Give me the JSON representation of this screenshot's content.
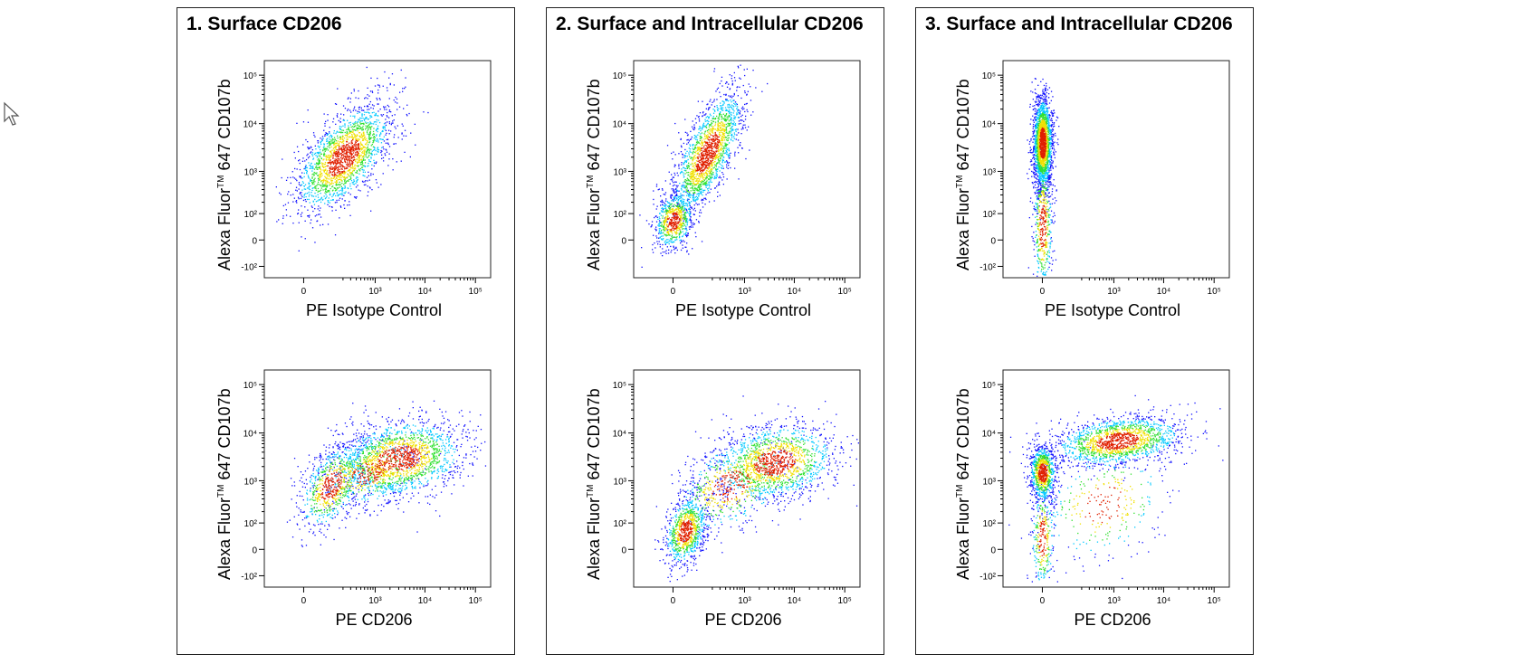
{
  "colors": {
    "density_low": "#1010ff",
    "density_mid": "#00c8ff",
    "density_midhigh": "#30e030",
    "density_high": "#f0e000",
    "density_max": "#e02000",
    "frame": "#222222"
  },
  "cursor_icon": "arrow-cursor-icon",
  "chart_data": [
    {
      "title": "1. Surface CD206",
      "plots": [
        {
          "type": "scatter",
          "xlabel": "PE Isotype Control",
          "ylabel_prefix": "Alexa Fluor",
          "ylabel_tm": "TM",
          "ylabel_suffix": " 647 CD107b",
          "x_ticks": [
            "0",
            "10³",
            "10⁴",
            "10⁵"
          ],
          "y_ticks": [
            "-10²",
            "0",
            "10²",
            "10³",
            "10⁴",
            "10⁵"
          ],
          "xlim": [
            -200,
            200000
          ],
          "ylim": [
            -200,
            200000
          ],
          "populations": [
            {
              "cx": 200,
              "cy": 2000,
              "sx": 0.3,
              "sy": 0.35,
              "rho": 0.6,
              "n": 2000
            }
          ]
        },
        {
          "type": "scatter",
          "xlabel": "PE CD206",
          "ylabel_prefix": "Alexa Fluor",
          "ylabel_tm": "TM",
          "ylabel_suffix": " 647 CD107b",
          "x_ticks": [
            "0",
            "10³",
            "10⁴",
            "10⁵"
          ],
          "y_ticks": [
            "-10²",
            "0",
            "10²",
            "10³",
            "10⁴",
            "10⁵"
          ],
          "xlim": [
            -200,
            200000
          ],
          "ylim": [
            -200,
            200000
          ],
          "populations": [
            {
              "cx": 100,
              "cy": 800,
              "sx": 0.2,
              "sy": 0.28,
              "rho": 0.5,
              "n": 700
            },
            {
              "cx": 3000,
              "cy": 3000,
              "sx": 0.4,
              "sy": 0.25,
              "rho": 0.2,
              "n": 1700
            },
            {
              "cx": 700,
              "cy": 1500,
              "sx": 0.3,
              "sy": 0.22,
              "rho": 0.3,
              "n": 500
            }
          ]
        }
      ]
    },
    {
      "title": "2. Surface and Intracellular CD206",
      "plots": [
        {
          "type": "scatter",
          "xlabel": "PE Isotype Control",
          "ylabel_prefix": "Alexa Fluor",
          "ylabel_tm": "TM",
          "ylabel_suffix": " 647 CD107b",
          "x_ticks": [
            "0",
            "10³",
            "10⁴",
            "10⁵"
          ],
          "y_ticks": [
            "0",
            "10²",
            "10³",
            "10⁴",
            "10⁵"
          ],
          "xlim": [
            -200,
            200000
          ],
          "ylim": [
            -200,
            200000
          ],
          "populations": [
            {
              "cx": 0,
              "cy": 60,
              "sx": 0.12,
              "sy": 0.18,
              "rho": 0.2,
              "n": 700
            },
            {
              "cx": 150,
              "cy": 2500,
              "sx": 0.22,
              "sy": 0.4,
              "rho": 0.7,
              "n": 1800
            }
          ]
        },
        {
          "type": "scatter",
          "xlabel": "PE CD206",
          "ylabel_prefix": "Alexa Fluor",
          "ylabel_tm": "TM",
          "ylabel_suffix": " 647 CD107b",
          "x_ticks": [
            "0",
            "10³",
            "10⁴",
            "10⁵"
          ],
          "y_ticks": [
            "0",
            "10²",
            "10³",
            "10⁴",
            "10⁵"
          ],
          "xlim": [
            -200,
            200000
          ],
          "ylim": [
            -200,
            200000
          ],
          "populations": [
            {
              "cx": 30,
              "cy": 60,
              "sx": 0.13,
              "sy": 0.22,
              "rho": 0.3,
              "n": 900
            },
            {
              "cx": 4000,
              "cy": 2500,
              "sx": 0.38,
              "sy": 0.25,
              "rho": 0.2,
              "n": 1500
            },
            {
              "cx": 500,
              "cy": 800,
              "sx": 0.35,
              "sy": 0.3,
              "rho": 0.4,
              "n": 600
            }
          ]
        }
      ]
    },
    {
      "title": "3. Surface and Intracellular CD206",
      "plots": [
        {
          "type": "scatter",
          "xlabel": "PE Isotype Control",
          "ylabel_prefix": "Alexa Fluor",
          "ylabel_tm": "TM",
          "ylabel_suffix": " 647 CD107b",
          "x_ticks": [
            "0",
            "10³",
            "10⁴",
            "10⁵"
          ],
          "y_ticks": [
            "-10²",
            "0",
            "10²",
            "10³",
            "10⁴",
            "10⁵"
          ],
          "xlim": [
            -200,
            200000
          ],
          "ylim": [
            -200,
            200000
          ],
          "populations": [
            {
              "cx": 0,
              "cy": 4000,
              "sx": 0.06,
              "sy": 0.3,
              "rho": 0.0,
              "n": 2000
            },
            {
              "cx": 0,
              "cy": 40,
              "sx": 0.06,
              "sy": 0.45,
              "rho": 0.0,
              "n": 500
            }
          ]
        },
        {
          "type": "scatter",
          "xlabel": "PE CD206",
          "ylabel_prefix": "Alexa Fluor",
          "ylabel_tm": "TM",
          "ylabel_suffix": " 647 CD107b",
          "x_ticks": [
            "0",
            "10³",
            "10⁴",
            "10⁵"
          ],
          "y_ticks": [
            "-10²",
            "0",
            "10²",
            "10³",
            "10⁴",
            "10⁵"
          ],
          "xlim": [
            -200,
            200000
          ],
          "ylim": [
            -200,
            200000
          ],
          "populations": [
            {
              "cx": 0,
              "cy": 1500,
              "sx": 0.08,
              "sy": 0.18,
              "rho": 0.0,
              "n": 900
            },
            {
              "cx": 1200,
              "cy": 7000,
              "sx": 0.4,
              "sy": 0.16,
              "rho": 0.3,
              "n": 1600
            },
            {
              "cx": 0,
              "cy": 30,
              "sx": 0.07,
              "sy": 0.35,
              "rho": 0.0,
              "n": 300
            },
            {
              "cx": 600,
              "cy": 300,
              "sx": 0.4,
              "sy": 0.35,
              "rho": 0.2,
              "n": 300
            }
          ]
        }
      ]
    }
  ]
}
